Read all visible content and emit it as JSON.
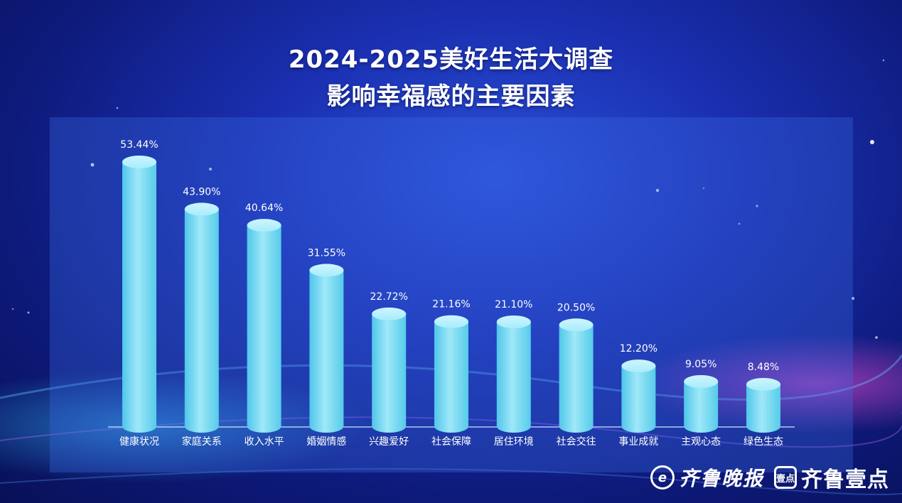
{
  "title": {
    "line1": "2024-2025美好生活大调查",
    "line2": "影响幸福感的主要因素"
  },
  "chart_data": {
    "type": "bar",
    "title": "2024-2025美好生活大调查 影响幸福感的主要因素",
    "xlabel": "",
    "ylabel": "",
    "categories": [
      "健康状况",
      "家庭关系",
      "收入水平",
      "婚姻情感",
      "兴趣爱好",
      "社会保障",
      "居住环境",
      "社会交往",
      "事业成就",
      "主观心态",
      "绿色生态"
    ],
    "values": [
      53.44,
      43.9,
      40.64,
      31.55,
      22.72,
      21.16,
      21.1,
      20.5,
      12.2,
      9.05,
      8.48
    ],
    "value_labels": [
      "53.44%",
      "43.90%",
      "40.64%",
      "31.55%",
      "22.72%",
      "21.16%",
      "21.10%",
      "20.50%",
      "12.20%",
      "9.05%",
      "8.48%"
    ],
    "ylim": [
      0,
      53.44
    ],
    "grid": false,
    "bar_color": "#7fdcf0"
  },
  "logos": {
    "logo1_mark": "e",
    "logo1_text": "齐鲁晚报",
    "logo2_mark": "壹点",
    "logo2_text": "齐鲁壹点"
  }
}
